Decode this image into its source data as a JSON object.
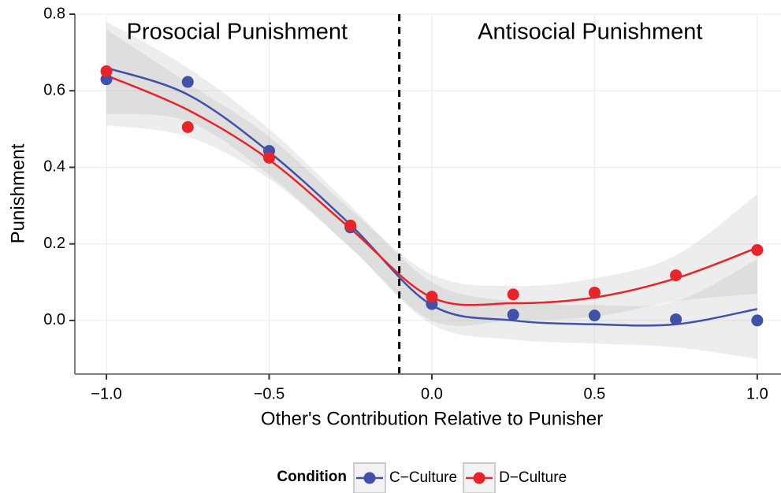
{
  "chart_data": {
    "type": "scatter",
    "x_label": "Other's Contribution Relative to Punisher",
    "y_label": "Punishment",
    "annotations": [
      "Prosocial Punishment",
      "Antisocial Punishment"
    ],
    "vline": -0.1,
    "legend_title": "Condition",
    "x": [
      -1,
      -0.75,
      -0.5,
      -0.25,
      0,
      0.25,
      0.5,
      0.75,
      1
    ],
    "series": [
      {
        "name": "C−Culture",
        "color": "#3f51a8",
        "values": [
          0.63,
          0.623,
          0.443,
          0.243,
          0.043,
          0.015,
          0.013,
          0.003,
          0.0
        ],
        "fit": [
          0.66,
          0.59,
          0.44,
          0.25,
          0.04,
          0.0,
          -0.01,
          -0.01,
          0.03
        ],
        "lower": [
          0.54,
          0.52,
          0.38,
          0.19,
          -0.01,
          -0.05,
          -0.06,
          -0.07,
          -0.1
        ],
        "upper": [
          0.78,
          0.66,
          0.5,
          0.3,
          0.1,
          0.05,
          0.04,
          0.05,
          0.16
        ]
      },
      {
        "name": "D−Culture",
        "color": "#e8232a",
        "values": [
          0.651,
          0.505,
          0.425,
          0.248,
          0.062,
          0.068,
          0.073,
          0.118,
          0.184
        ],
        "fit": [
          0.64,
          0.55,
          0.42,
          0.24,
          0.06,
          0.045,
          0.06,
          0.11,
          0.19
        ],
        "lower": [
          0.51,
          0.48,
          0.37,
          0.19,
          0.0,
          0.0,
          0.01,
          0.05,
          0.07
        ],
        "upper": [
          0.76,
          0.62,
          0.48,
          0.29,
          0.12,
          0.09,
          0.11,
          0.17,
          0.33
        ]
      }
    ],
    "xlim": [
      -1.097,
      1.073
    ],
    "ylim": [
      -0.14,
      0.8
    ],
    "xticks": [
      {
        "value": -1,
        "label": "−1.0"
      },
      {
        "value": -0.5,
        "label": "−0.5"
      },
      {
        "value": 0,
        "label": "0.0"
      },
      {
        "value": 0.5,
        "label": "0.5"
      },
      {
        "value": 1,
        "label": "1.0"
      }
    ],
    "yticks": [
      {
        "value": 0,
        "label": "0.0"
      },
      0.2,
      0.4,
      0.6,
      0.8
    ],
    "grid": true
  }
}
